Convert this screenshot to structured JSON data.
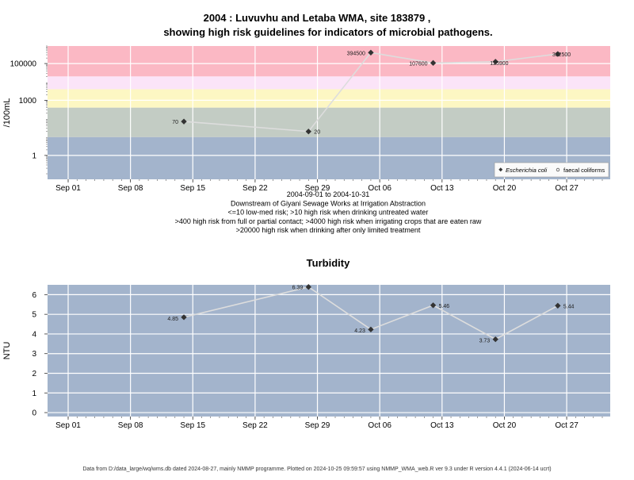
{
  "chart_data": [
    {
      "type": "line",
      "title": "2004 : Luvuvhu and Letaba WMA, site 183879 ,",
      "subtitle": "showing high risk guidelines for indicators of microbial pathogens.",
      "ylabel": "/100mL",
      "y_scale": "log",
      "y_ticks": [
        "1",
        "1000",
        "100000"
      ],
      "y_tick_values": [
        1,
        1000,
        100000
      ],
      "x_ticks": [
        "Sep 01",
        "Sep 08",
        "Sep 15",
        "Sep 22",
        "Sep 29",
        "Oct 06",
        "Oct 13",
        "Oct 20",
        "Oct 27"
      ],
      "x_tick_dates": [
        "2004-09-01",
        "2004-09-08",
        "2004-09-15",
        "2004-09-22",
        "2004-09-29",
        "2004-10-06",
        "2004-10-13",
        "2004-10-20",
        "2004-10-27"
      ],
      "caption_lines": [
        "2004-09-01 to 2004-10-31",
        "Downstream of Giyani Sewage Works at Irrigation Abstraction",
        "<=10 low-med risk; >10 high risk when drinking untreated water",
        ">400 high risk from full or partial contact; >4000 high risk when irrigating crops that are eaten raw",
        ">20000 high risk when drinking after only limited treatment"
      ],
      "risk_bands": [
        {
          "from": 0.05,
          "to": 10,
          "color": "#a3b4cc"
        },
        {
          "from": 10,
          "to": 400,
          "color": "#c3ccc4"
        },
        {
          "from": 400,
          "to": 4000,
          "color": "#fdf7c3"
        },
        {
          "from": 4000,
          "to": 20000,
          "color": "#fbe4f8"
        },
        {
          "from": 20000,
          "to": 2000000,
          "color": "#fbb8c4"
        }
      ],
      "legend": {
        "placement": "bottom-right",
        "entries": [
          "Escherichia coli",
          "faecal coliforms"
        ]
      },
      "series": [
        {
          "name": "Escherichia coli",
          "points": [
            {
              "x": "2004-09-14",
              "y": 70,
              "label": "70"
            },
            {
              "x": "2004-09-28",
              "y": 20,
              "label": "20"
            },
            {
              "x": "2004-10-05",
              "y": 394500,
              "label": "394500"
            },
            {
              "x": "2004-10-12",
              "y": 107600,
              "label": "107600"
            },
            {
              "x": "2004-10-19",
              "y": 125900,
              "label": "125900"
            },
            {
              "x": "2004-10-26",
              "y": 332500,
              "label": "332500"
            }
          ]
        }
      ]
    },
    {
      "type": "line",
      "title": "Turbidity",
      "ylabel": "NTU",
      "ylim": [
        0,
        6.5
      ],
      "y_ticks": [
        "0",
        "1",
        "2",
        "3",
        "4",
        "5",
        "6"
      ],
      "x_ticks": [
        "Sep 01",
        "Sep 08",
        "Sep 15",
        "Sep 22",
        "Sep 29",
        "Oct 06",
        "Oct 13",
        "Oct 20",
        "Oct 27"
      ],
      "x_tick_dates": [
        "2004-09-01",
        "2004-09-08",
        "2004-09-15",
        "2004-09-22",
        "2004-09-29",
        "2004-10-06",
        "2004-10-13",
        "2004-10-20",
        "2004-10-27"
      ],
      "series": [
        {
          "points": [
            {
              "x": "2004-09-14",
              "y": 4.85,
              "label": "4.85"
            },
            {
              "x": "2004-09-28",
              "y": 6.39,
              "label": "6.39"
            },
            {
              "x": "2004-10-05",
              "y": 4.23,
              "label": "4.23"
            },
            {
              "x": "2004-10-12",
              "y": 5.46,
              "label": "5.46"
            },
            {
              "x": "2004-10-19",
              "y": 3.73,
              "label": "3.73"
            },
            {
              "x": "2004-10-26",
              "y": 5.44,
              "label": "5.44"
            }
          ]
        }
      ]
    }
  ],
  "footer": "Data from D:/data_large/wq/wms.db dated 2024-08-27, mainly NMMP programme. Plotted on 2024-10-25 09:59:57 using NMMP_WMA_web.R ver 9.3 under R version 4.4.1 (2024-06-14 ucrt)",
  "colors": {
    "plot_bg": "#a3b4cc",
    "grid": "#ffffff",
    "line": "#dddddd",
    "point": "#333333"
  }
}
